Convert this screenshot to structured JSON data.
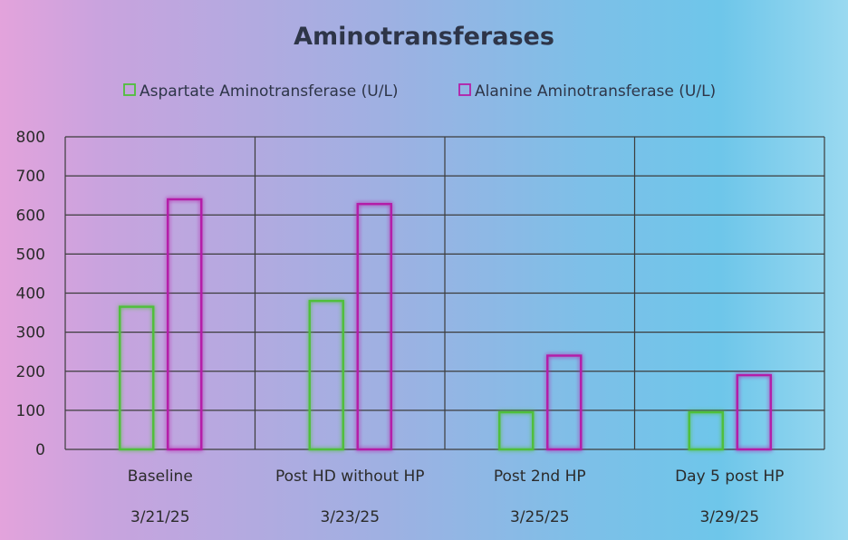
{
  "chart_data": {
    "type": "bar",
    "title": "Aminotransferases",
    "categories": [
      [
        "Baseline",
        "3/21/25"
      ],
      [
        "Post HD without HP",
        "3/23/25"
      ],
      [
        "Post 2nd HP",
        "3/25/25"
      ],
      [
        "Day 5 post HP",
        "3/29/25"
      ]
    ],
    "series": [
      {
        "name": "Aspartate Aminotransferase (U/L)",
        "color": "#4fbf3a",
        "values": [
          365,
          380,
          95,
          95
        ]
      },
      {
        "name": "Alanine Aminotransferase (U/L)",
        "color": "#b41fa8",
        "values": [
          640,
          628,
          240,
          190
        ]
      }
    ],
    "ylim": [
      0,
      800
    ],
    "yticks": [
      0,
      100,
      200,
      300,
      400,
      500,
      600,
      700,
      800
    ],
    "grid": true,
    "legend_position": "top"
  }
}
